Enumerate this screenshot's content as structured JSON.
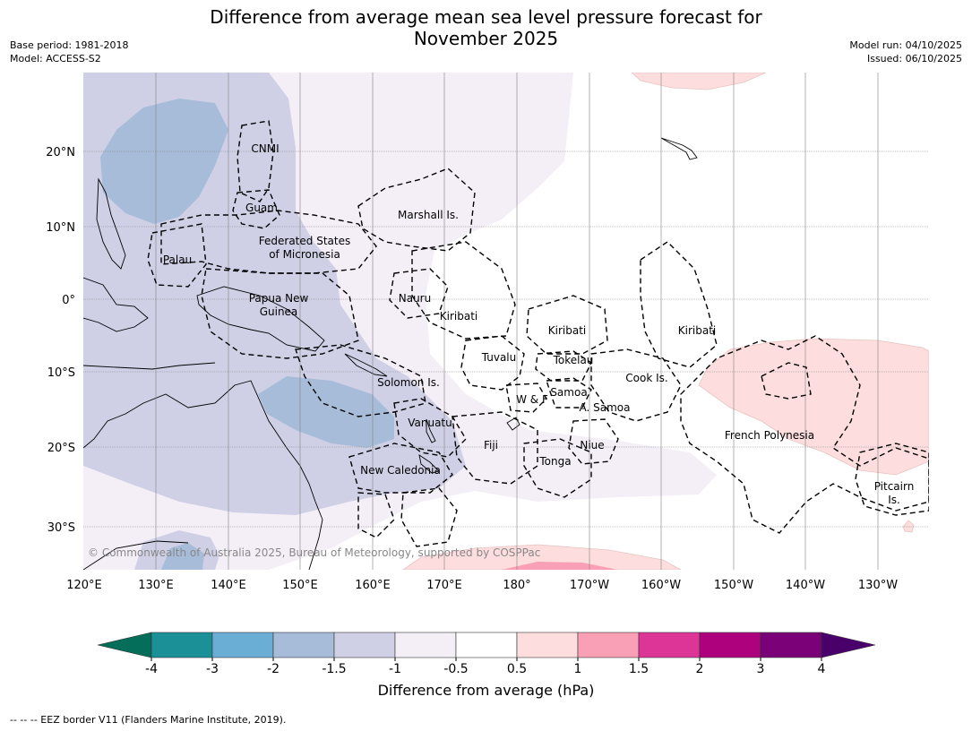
{
  "title_line1": "Difference from average mean sea level pressure forecast for",
  "title_line2": "November 2025",
  "meta_left": {
    "base_period": "Base period: 1981-2018",
    "model": "Model: ACCESS-S2"
  },
  "meta_right": {
    "model_run": "Model run: 04/10/2025",
    "issued": "Issued: 06/10/2025"
  },
  "lat_labels": [
    "20°N",
    "10°N",
    "0°",
    "10°S",
    "20°S",
    "30°S"
  ],
  "lon_labels": [
    "120°E",
    "130°E",
    "140°E",
    "150°E",
    "160°E",
    "170°E",
    "180°",
    "170°W",
    "160°W",
    "150°W",
    "140°W",
    "130°W"
  ],
  "place_labels": [
    "CNMI",
    "Guam",
    "Marshall Is.",
    "Federated States",
    "of Micronesia",
    "Palau",
    "Papua New",
    "Guinea",
    "Nauru",
    "Kiribati",
    "Kiribati",
    "Kiribati",
    "Tuvalu",
    "Tokelau",
    "Cook Is.",
    "Solomon Is.",
    "W & F",
    "Samoa",
    "A. Samoa",
    "Vanuatu",
    "Fiji",
    "Niue",
    "French Polynesia",
    "Tonga",
    "New Caledonia",
    "Pitcairn",
    "Is."
  ],
  "copyright": "© Commonwealth of Australia 2025, Bureau of Meteorology, supported by COSPPac",
  "colorbar": {
    "ticks": [
      "-4",
      "-3",
      "-2",
      "-1.5",
      "-1",
      "-0.5",
      "0.5",
      "1",
      "1.5",
      "2",
      "3",
      "4"
    ],
    "colors": [
      "#1b9097",
      "#6aaed6",
      "#a7bcd9",
      "#cfd0e6",
      "#f4eef7",
      "#ffffff",
      "#fddddd",
      "#f99fb6",
      "#dd3497",
      "#ae017e",
      "#7a0177"
    ],
    "under_color": "#046e5a",
    "over_color": "#49006a",
    "label": "Difference from average (hPa)"
  },
  "eez_note": "-- -- -- EEZ border V11 (Flanders Marine Institute, 2019)."
}
